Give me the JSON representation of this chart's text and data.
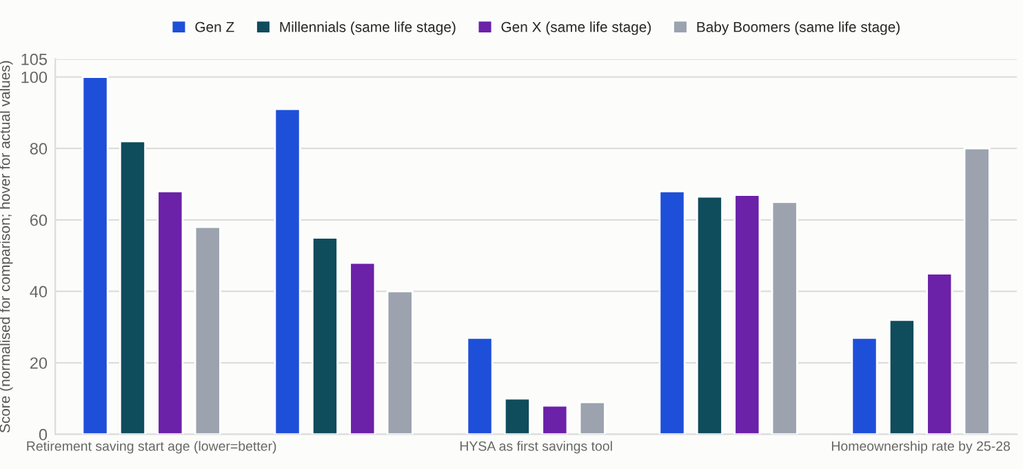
{
  "chart_data": {
    "type": "bar",
    "categories": [
      "Retirement saving start age (lower=better)",
      null,
      "HYSA as first savings tool",
      null,
      "Homeownership rate by 25-28"
    ],
    "ylabel": "Score (normalised for comparison; hover for actual values)",
    "series": [
      {
        "name": "Gen Z",
        "color": "#1e4fd8",
        "values": [
          100,
          91,
          27,
          68,
          27
        ]
      },
      {
        "name": "Millennials (same life stage)",
        "color": "#0f4c5c",
        "values": [
          82,
          55,
          10,
          66.5,
          32
        ]
      },
      {
        "name": "Gen X (same life stage)",
        "color": "#6b21a8",
        "values": [
          68,
          48,
          8,
          67,
          45
        ]
      },
      {
        "name": "Baby Boomers (same life stage)",
        "color": "#9ca3af",
        "values": [
          58,
          40,
          9,
          65,
          80
        ]
      }
    ],
    "ylim": [
      0,
      105
    ],
    "yticks": [
      0,
      20,
      40,
      60,
      80,
      100,
      105
    ],
    "grid": "y",
    "legend": "top"
  }
}
